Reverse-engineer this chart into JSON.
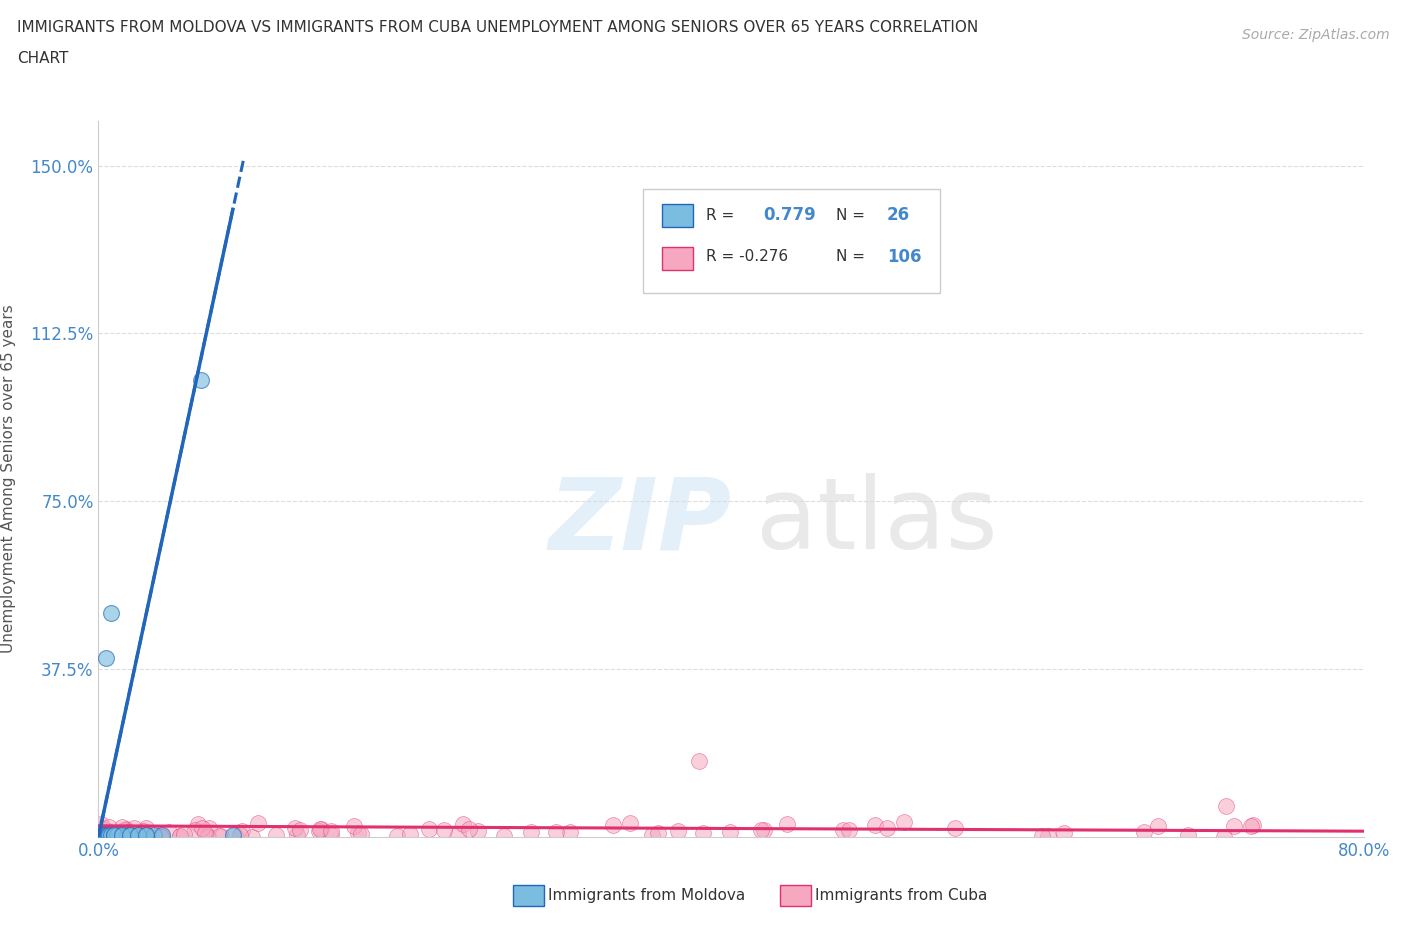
{
  "title_line1": "IMMIGRANTS FROM MOLDOVA VS IMMIGRANTS FROM CUBA UNEMPLOYMENT AMONG SENIORS OVER 65 YEARS CORRELATION",
  "title_line2": "CHART",
  "source_text": "Source: ZipAtlas.com",
  "ylabel": "Unemployment Among Seniors over 65 years",
  "moldova_R": "0.779",
  "moldova_N": "26",
  "cuba_R": "-0.276",
  "cuba_N": "106",
  "moldova_color": "#7bbde0",
  "cuba_color": "#f5a8c0",
  "moldova_line_color": "#2266bb",
  "cuba_line_color": "#e03070",
  "tick_color": "#4488cc",
  "grid_color": "#dddddd",
  "title_color": "#333333",
  "source_color": "#aaaaaa",
  "xlim": [
    0.0,
    0.8
  ],
  "ylim": [
    0.0,
    1.6
  ],
  "xtick_vals": [
    0.0,
    0.2,
    0.4,
    0.6,
    0.8
  ],
  "xtick_labels": [
    "0.0%",
    "",
    "",
    "",
    "80.0%"
  ],
  "ytick_vals": [
    0.0,
    0.375,
    0.75,
    1.125,
    1.5
  ],
  "ytick_labels": [
    "",
    "37.5%",
    "75.0%",
    "112.5%",
    "150.0%"
  ],
  "moldova_x": [
    0.001,
    0.002,
    0.003,
    0.004,
    0.005,
    0.006,
    0.007,
    0.008,
    0.01,
    0.012,
    0.015,
    0.018,
    0.02,
    0.025,
    0.03,
    0.035,
    0.04,
    0.005,
    0.008,
    0.01,
    0.015,
    0.02,
    0.025,
    0.03,
    0.065,
    0.085
  ],
  "moldova_y": [
    0.005,
    0.005,
    0.005,
    0.005,
    0.005,
    0.005,
    0.005,
    0.005,
    0.005,
    0.005,
    0.005,
    0.005,
    0.005,
    0.005,
    0.005,
    0.005,
    0.005,
    0.4,
    0.5,
    0.005,
    0.005,
    0.005,
    0.005,
    0.005,
    1.02,
    0.005
  ]
}
